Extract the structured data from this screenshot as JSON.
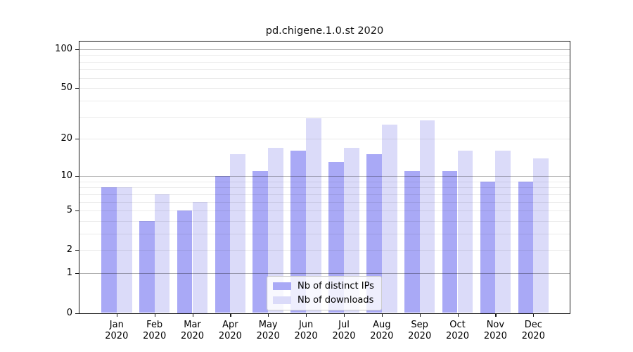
{
  "chart_data": {
    "type": "bar",
    "title": "pd.chigene.1.0.st 2020",
    "categories": [
      "Jan 2020",
      "Feb 2020",
      "Mar 2020",
      "Apr 2020",
      "May 2020",
      "Jun 2020",
      "Jul 2020",
      "Aug 2020",
      "Sep 2020",
      "Oct 2020",
      "Nov 2020",
      "Dec 2020"
    ],
    "series": [
      {
        "name": "Nb of distinct IPs",
        "color": "#a9a9f6",
        "values": [
          8,
          4,
          5,
          10,
          11,
          16,
          13,
          15,
          11,
          11,
          9,
          9
        ]
      },
      {
        "name": "Nb of downloads",
        "color": "#dbdbf9",
        "values": [
          8,
          7,
          6,
          15,
          17,
          29,
          17,
          26,
          28,
          16,
          16,
          14
        ]
      }
    ],
    "xlabel": "",
    "ylabel": "",
    "y_scale": "log10(1+v)",
    "y_ticks": [
      0,
      1,
      2,
      5,
      10,
      20,
      50,
      100
    ],
    "ylim": [
      0,
      115
    ],
    "grid": "horizontal minor+major",
    "legend_position": "lower center"
  },
  "colors": {
    "bar_ips": "#a9a9f6",
    "bar_downloads": "#dbdbf9",
    "grid_minor": "rgba(0,0,0,0.08)",
    "grid_major": "rgba(0,0,0,0.30)",
    "axis_frame": "#1a1a1a",
    "background": "#ffffff"
  }
}
